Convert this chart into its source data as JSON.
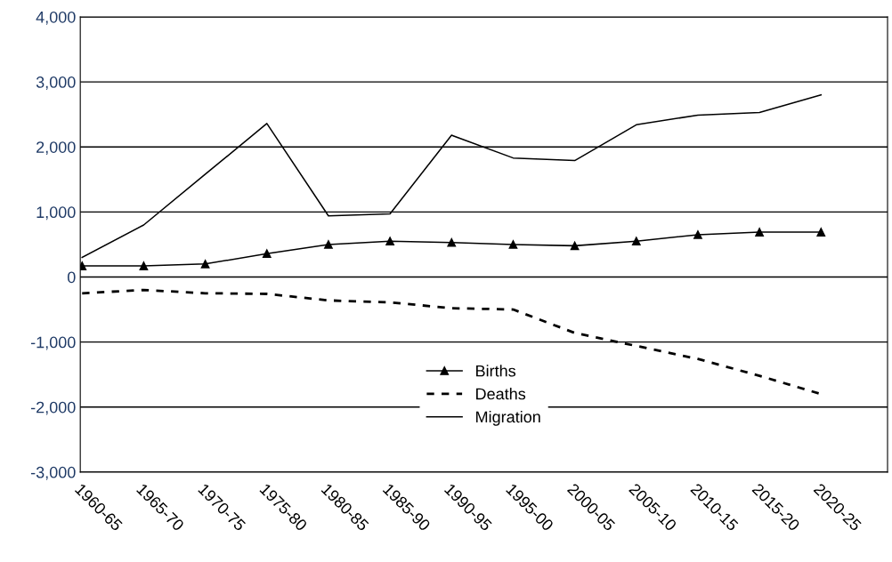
{
  "chart_data": {
    "type": "line",
    "categories": [
      "1960-65",
      "1965-70",
      "1970-75",
      "1975-80",
      "1980-85",
      "1985-90",
      "1990-95",
      "1995-00",
      "2000-05",
      "2005-10",
      "2010-15",
      "2015-20",
      "2020-25"
    ],
    "series": [
      {
        "name": "Births",
        "color": "#000000",
        "marker": "triangle",
        "line_style": "solid",
        "values": [
          170,
          170,
          200,
          360,
          500,
          550,
          530,
          500,
          480,
          550,
          650,
          690,
          690
        ]
      },
      {
        "name": "Deaths",
        "color": "#000000",
        "marker": "none",
        "line_style": "dashed",
        "values": [
          -250,
          -200,
          -250,
          -260,
          -360,
          -390,
          -480,
          -500,
          -860,
          -1060,
          -1260,
          -1520,
          -1800
        ]
      },
      {
        "name": "Migration",
        "color": "#000000",
        "marker": "none",
        "line_style": "solid",
        "values": [
          300,
          800,
          1580,
          2360,
          940,
          970,
          2180,
          1830,
          1790,
          2340,
          2490,
          2530,
          2800
        ]
      }
    ],
    "ylim": [
      -3000,
      4000
    ],
    "yticks": [
      {
        "value": -3000,
        "label": "-3,000"
      },
      {
        "value": -2000,
        "label": "-2,000"
      },
      {
        "value": -1000,
        "label": "-1,000"
      },
      0,
      {
        "value": 1000,
        "label": "1,000"
      },
      {
        "value": 2000,
        "label": "2,000"
      },
      {
        "value": 3000,
        "label": "3,000"
      },
      {
        "value": 4000,
        "label": "4,000"
      }
    ],
    "grid": "y",
    "legend": "bottom"
  }
}
